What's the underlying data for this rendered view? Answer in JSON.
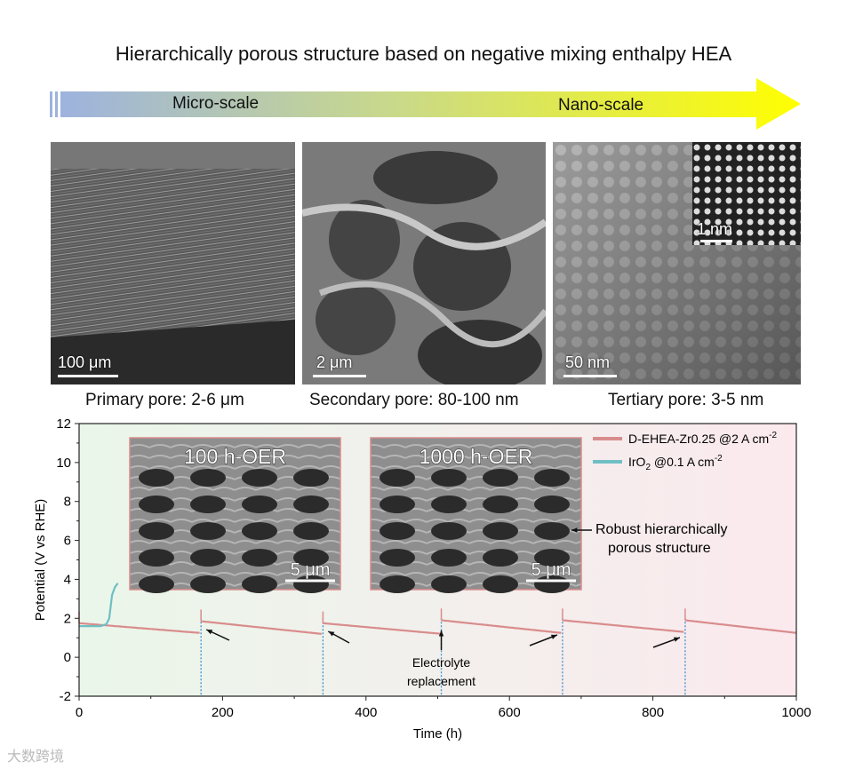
{
  "title": "Hierarchically porous structure based on negative mixing enthalpy HEA",
  "scale_arrow": {
    "left_label": "Micro-scale",
    "right_label": "Nano-scale",
    "colors": {
      "start": "#9db3de",
      "middle": "#c9d98a",
      "end": "#ffff00"
    }
  },
  "panels": [
    {
      "scale_bar": "100 μm",
      "caption": "Primary pore: 2-6 μm"
    },
    {
      "scale_bar": "2 μm",
      "caption": "Secondary pore: 80-100 nm"
    },
    {
      "scale_bar": "50 nm",
      "caption": "Tertiary pore: 3-5 nm",
      "inset_scale_bar": "1 nm"
    }
  ],
  "chart_data": {
    "type": "line",
    "xlabel": "Time (h)",
    "ylabel": "Potential (V vs RHE)",
    "xlim": [
      0,
      1000
    ],
    "ylim": [
      -2,
      12
    ],
    "xticks": [
      0,
      200,
      400,
      600,
      800,
      1000
    ],
    "yticks": [
      -2,
      0,
      2,
      4,
      6,
      8,
      10,
      12
    ],
    "series": [
      {
        "name": "D-EHEA-Zr0.25 @2 A cm",
        "name_superscript": "-2",
        "color": "#d98c8c",
        "segments": [
          {
            "x": [
              0,
              168
            ],
            "y": [
              1.75,
              1.25
            ]
          },
          {
            "x": [
              170,
              338
            ],
            "y": [
              1.85,
              1.2
            ]
          },
          {
            "x": [
              340,
              505
            ],
            "y": [
              1.75,
              1.2
            ]
          },
          {
            "x": [
              505,
              672
            ],
            "y": [
              1.9,
              1.25
            ]
          },
          {
            "x": [
              674,
              843
            ],
            "y": [
              1.9,
              1.3
            ]
          },
          {
            "x": [
              845,
              1000
            ],
            "y": [
              1.9,
              1.25
            ]
          }
        ]
      },
      {
        "name": "IrO",
        "name_subscript": "2",
        "name_suffix": " @0.1 A cm",
        "name_superscript": "-2",
        "color": "#6fbfc4",
        "x": [
          0,
          30,
          38,
          42,
          44,
          46,
          50,
          54
        ],
        "y": [
          1.6,
          1.6,
          1.7,
          2.0,
          2.6,
          3.2,
          3.6,
          3.8
        ]
      }
    ],
    "electrolyte_replacement_times": [
      170,
      340,
      505,
      674,
      845
    ],
    "annotations": {
      "electrolyte_line1": "Electrolyte",
      "electrolyte_line2": "replacement",
      "robust_line1": "Robust hierarchically",
      "robust_line2": "porous structure"
    },
    "insets": [
      {
        "title": "100 h-OER",
        "scale_bar": "5 μm"
      },
      {
        "title": "1000 h-OER",
        "scale_bar": "5 μm"
      }
    ],
    "background_colors": {
      "left": "#eaf6ea",
      "right": "#fbe9ee"
    }
  },
  "watermark": "大数跨境"
}
